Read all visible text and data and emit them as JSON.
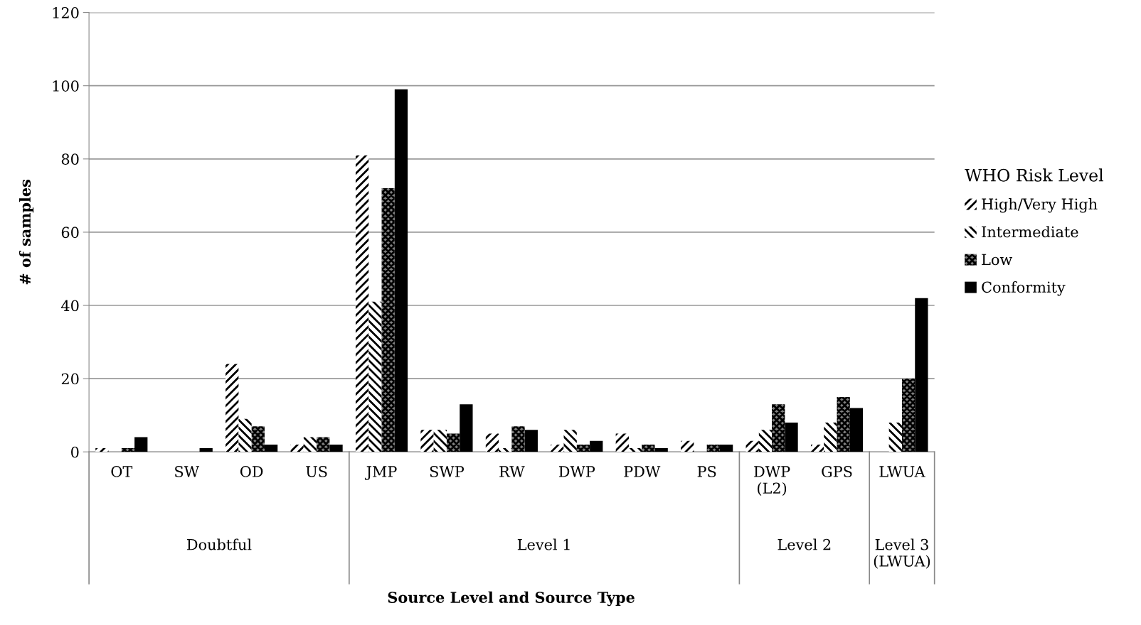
{
  "chart_data": {
    "type": "bar",
    "ylabel": "# of samples",
    "legend_title": "WHO Risk Level",
    "categories": [
      "OT",
      "SW",
      "OD",
      "US",
      "JMP",
      "SWP",
      "RW",
      "DWP",
      "PDW",
      "PS",
      "DWP\n(L2)",
      "GPS",
      "LWUA"
    ],
    "series": [
      {
        "name": "High/Very High",
        "color": "#ffffff",
        "values": [
          1,
          0,
          24,
          2,
          81,
          6,
          5,
          2,
          5,
          3,
          3,
          2,
          0
        ]
      },
      {
        "name": "Intermediate",
        "color": "#ffffff",
        "values": [
          0,
          0,
          9,
          4,
          41,
          6,
          1,
          6,
          1,
          0,
          6,
          8,
          8
        ]
      },
      {
        "name": "Low",
        "color": "#808080",
        "values": [
          1,
          0,
          7,
          4,
          72,
          5,
          7,
          2,
          2,
          2,
          13,
          15,
          20
        ]
      },
      {
        "name": "Conformity",
        "color": "#000000",
        "values": [
          4,
          1,
          2,
          2,
          99,
          13,
          6,
          3,
          1,
          2,
          8,
          12,
          42
        ]
      }
    ],
    "annotations": [
      "Doubtful",
      "Level 1",
      "Level 2",
      "Level 3\n(LWUA)",
      "Source Level and Source Type"
    ],
    "ylim": [
      0,
      120
    ],
    "yticks": [
      0,
      20,
      40,
      60,
      80,
      100,
      120
    ],
    "grid": "y",
    "legend": "right"
  }
}
